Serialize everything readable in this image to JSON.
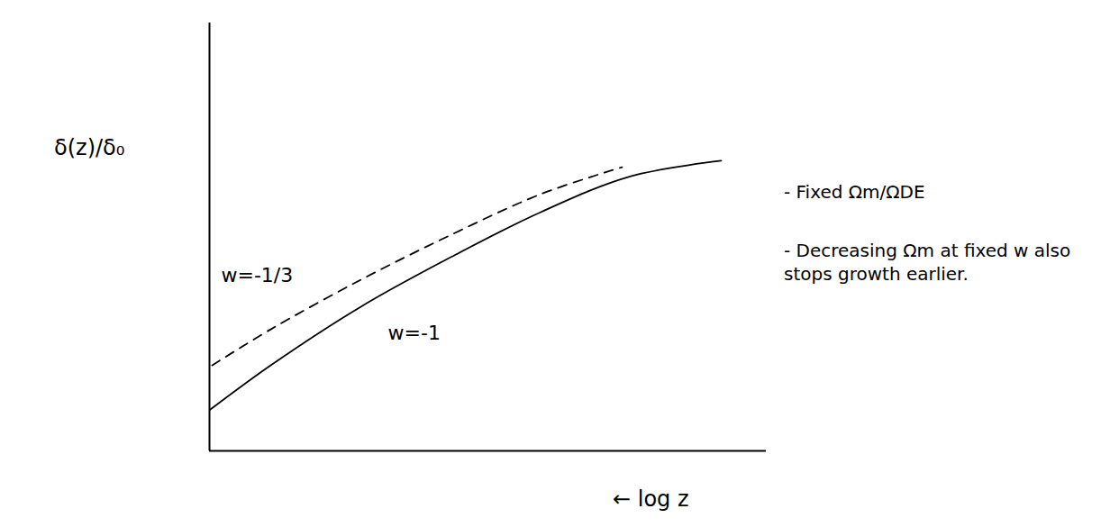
{
  "chart_data": {
    "type": "line",
    "x_label": "← log z",
    "y_label": "δ(z)/δ₀",
    "xlim": [
      0,
      1
    ],
    "ylim": [
      0,
      1
    ],
    "xticks": [],
    "yticks": [],
    "tick_labels": false,
    "series": [
      {
        "name": "w=-1/3",
        "color": "#000000",
        "line_style": "dashed",
        "x": [
          0.005,
          0.11,
          0.272,
          0.434,
          0.595,
          0.741
        ],
        "values": [
          0.2,
          0.284,
          0.4,
          0.505,
          0.6,
          0.663
        ]
      },
      {
        "name": "w=-1",
        "color": "#000000",
        "line_style": "solid",
        "x": [
          0,
          0.11,
          0.272,
          0.434,
          0.595,
          0.757,
          0.919
        ],
        "values": [
          0.095,
          0.2,
          0.337,
          0.453,
          0.558,
          0.642,
          0.678
        ]
      }
    ],
    "annotations": [
      "- Fixed Ωm/ΩDE",
      "- Decreasing Ωm at fixed w also stops growth earlier."
    ]
  }
}
